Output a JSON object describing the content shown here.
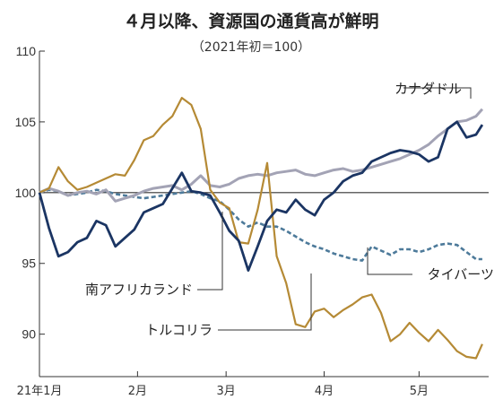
{
  "chart_data": {
    "type": "line",
    "title": "４月以降、資源国の通貨高が鮮明",
    "subtitle": "（2021年初＝100）",
    "ylim": [
      87,
      110
    ],
    "yticks": [
      90,
      95,
      100,
      105,
      110
    ],
    "xlim": [
      0,
      142
    ],
    "xticks": [
      {
        "label": "21年1月",
        "x": 0
      },
      {
        "label": "2月",
        "x": 31
      },
      {
        "label": "3月",
        "x": 59
      },
      {
        "label": "4月",
        "x": 90
      },
      {
        "label": "5月",
        "x": 120
      }
    ],
    "reference_line": 100,
    "x": [
      0,
      3,
      6,
      9,
      12,
      15,
      18,
      21,
      24,
      27,
      30,
      33,
      36,
      39,
      42,
      45,
      48,
      51,
      54,
      57,
      60,
      63,
      66,
      69,
      72,
      75,
      78,
      81,
      84,
      87,
      90,
      93,
      96,
      99,
      102,
      105,
      108,
      111,
      114,
      117,
      120,
      123,
      126,
      129,
      132,
      135,
      138,
      140
    ],
    "series": [
      {
        "name": "カナダドル",
        "color": "#a3a3b5",
        "style": "solid",
        "values": [
          100,
          100.3,
          100.1,
          99.8,
          100,
          100.1,
          99.9,
          100.2,
          99.4,
          99.6,
          99.8,
          100.1,
          100.3,
          100.4,
          100.5,
          100.2,
          100.6,
          101.2,
          100.5,
          100.4,
          100.6,
          101,
          101.2,
          101.3,
          101.2,
          101.4,
          101.5,
          101.6,
          101.3,
          101.2,
          101.4,
          101.6,
          101.7,
          101.5,
          101.6,
          101.8,
          102,
          102.2,
          102.4,
          102.7,
          103,
          103.4,
          104,
          104.5,
          105,
          105.1,
          105.4,
          105.9
        ]
      },
      {
        "name": "南アフリカランド",
        "color": "#1b3563",
        "style": "solid",
        "values": [
          100,
          97.5,
          95.5,
          95.8,
          96.5,
          96.8,
          98,
          97.7,
          96.2,
          96.8,
          97.4,
          98.6,
          98.9,
          99.2,
          100.3,
          101.4,
          100.1,
          100,
          99.8,
          98.6,
          97.3,
          96.6,
          94.5,
          96.2,
          98,
          98.8,
          98.6,
          99.5,
          98.8,
          98.4,
          99.5,
          100,
          100.8,
          101.2,
          101.4,
          102.2,
          102.5,
          102.8,
          103,
          102.9,
          102.7,
          102.2,
          102.5,
          104.5,
          105,
          103.9,
          104.1,
          104.8
        ]
      },
      {
        "name": "トルコリラ",
        "color": "#b58a35",
        "style": "solid",
        "values": [
          100,
          100.3,
          101.8,
          100.8,
          100.2,
          100.4,
          100.7,
          101,
          101.3,
          101.2,
          102.3,
          103.7,
          104,
          104.8,
          105.4,
          106.7,
          106.2,
          104.5,
          100.2,
          99.3,
          98.9,
          96.5,
          96.4,
          98.8,
          102.1,
          95.5,
          93.6,
          90.7,
          90.5,
          91.6,
          91.8,
          91.2,
          91.7,
          92.1,
          92.6,
          92.8,
          91.5,
          89.5,
          90,
          90.8,
          90.1,
          89.5,
          90.3,
          89.6,
          88.8,
          88.4,
          88.3,
          89.3
        ]
      },
      {
        "name": "タイバーツ",
        "color": "#4d7a9a",
        "style": "dashed",
        "values": [
          100,
          100.2,
          100.1,
          99.8,
          99.9,
          100,
          100.2,
          100.1,
          99.9,
          99.8,
          99.7,
          99.6,
          99.7,
          99.8,
          99.9,
          100,
          100.1,
          99.9,
          99.6,
          99.4,
          98.8,
          98.1,
          97.6,
          97.9,
          97.6,
          97.6,
          97.3,
          96.9,
          96.5,
          96.2,
          96,
          95.7,
          95.5,
          95.3,
          95.2,
          96.2,
          95.9,
          95.6,
          96,
          96,
          95.8,
          96,
          96.3,
          96.4,
          96.3,
          95.8,
          95.3,
          95.3
        ]
      }
    ],
    "labels": [
      {
        "text": "カナダドル",
        "series": "カナダドル"
      },
      {
        "text": "南アフリカランド",
        "series": "南アフリカランド"
      },
      {
        "text": "トルコリラ",
        "series": "トルコリラ"
      },
      {
        "text": "タイバーツ",
        "series": "タイバーツ"
      }
    ]
  }
}
